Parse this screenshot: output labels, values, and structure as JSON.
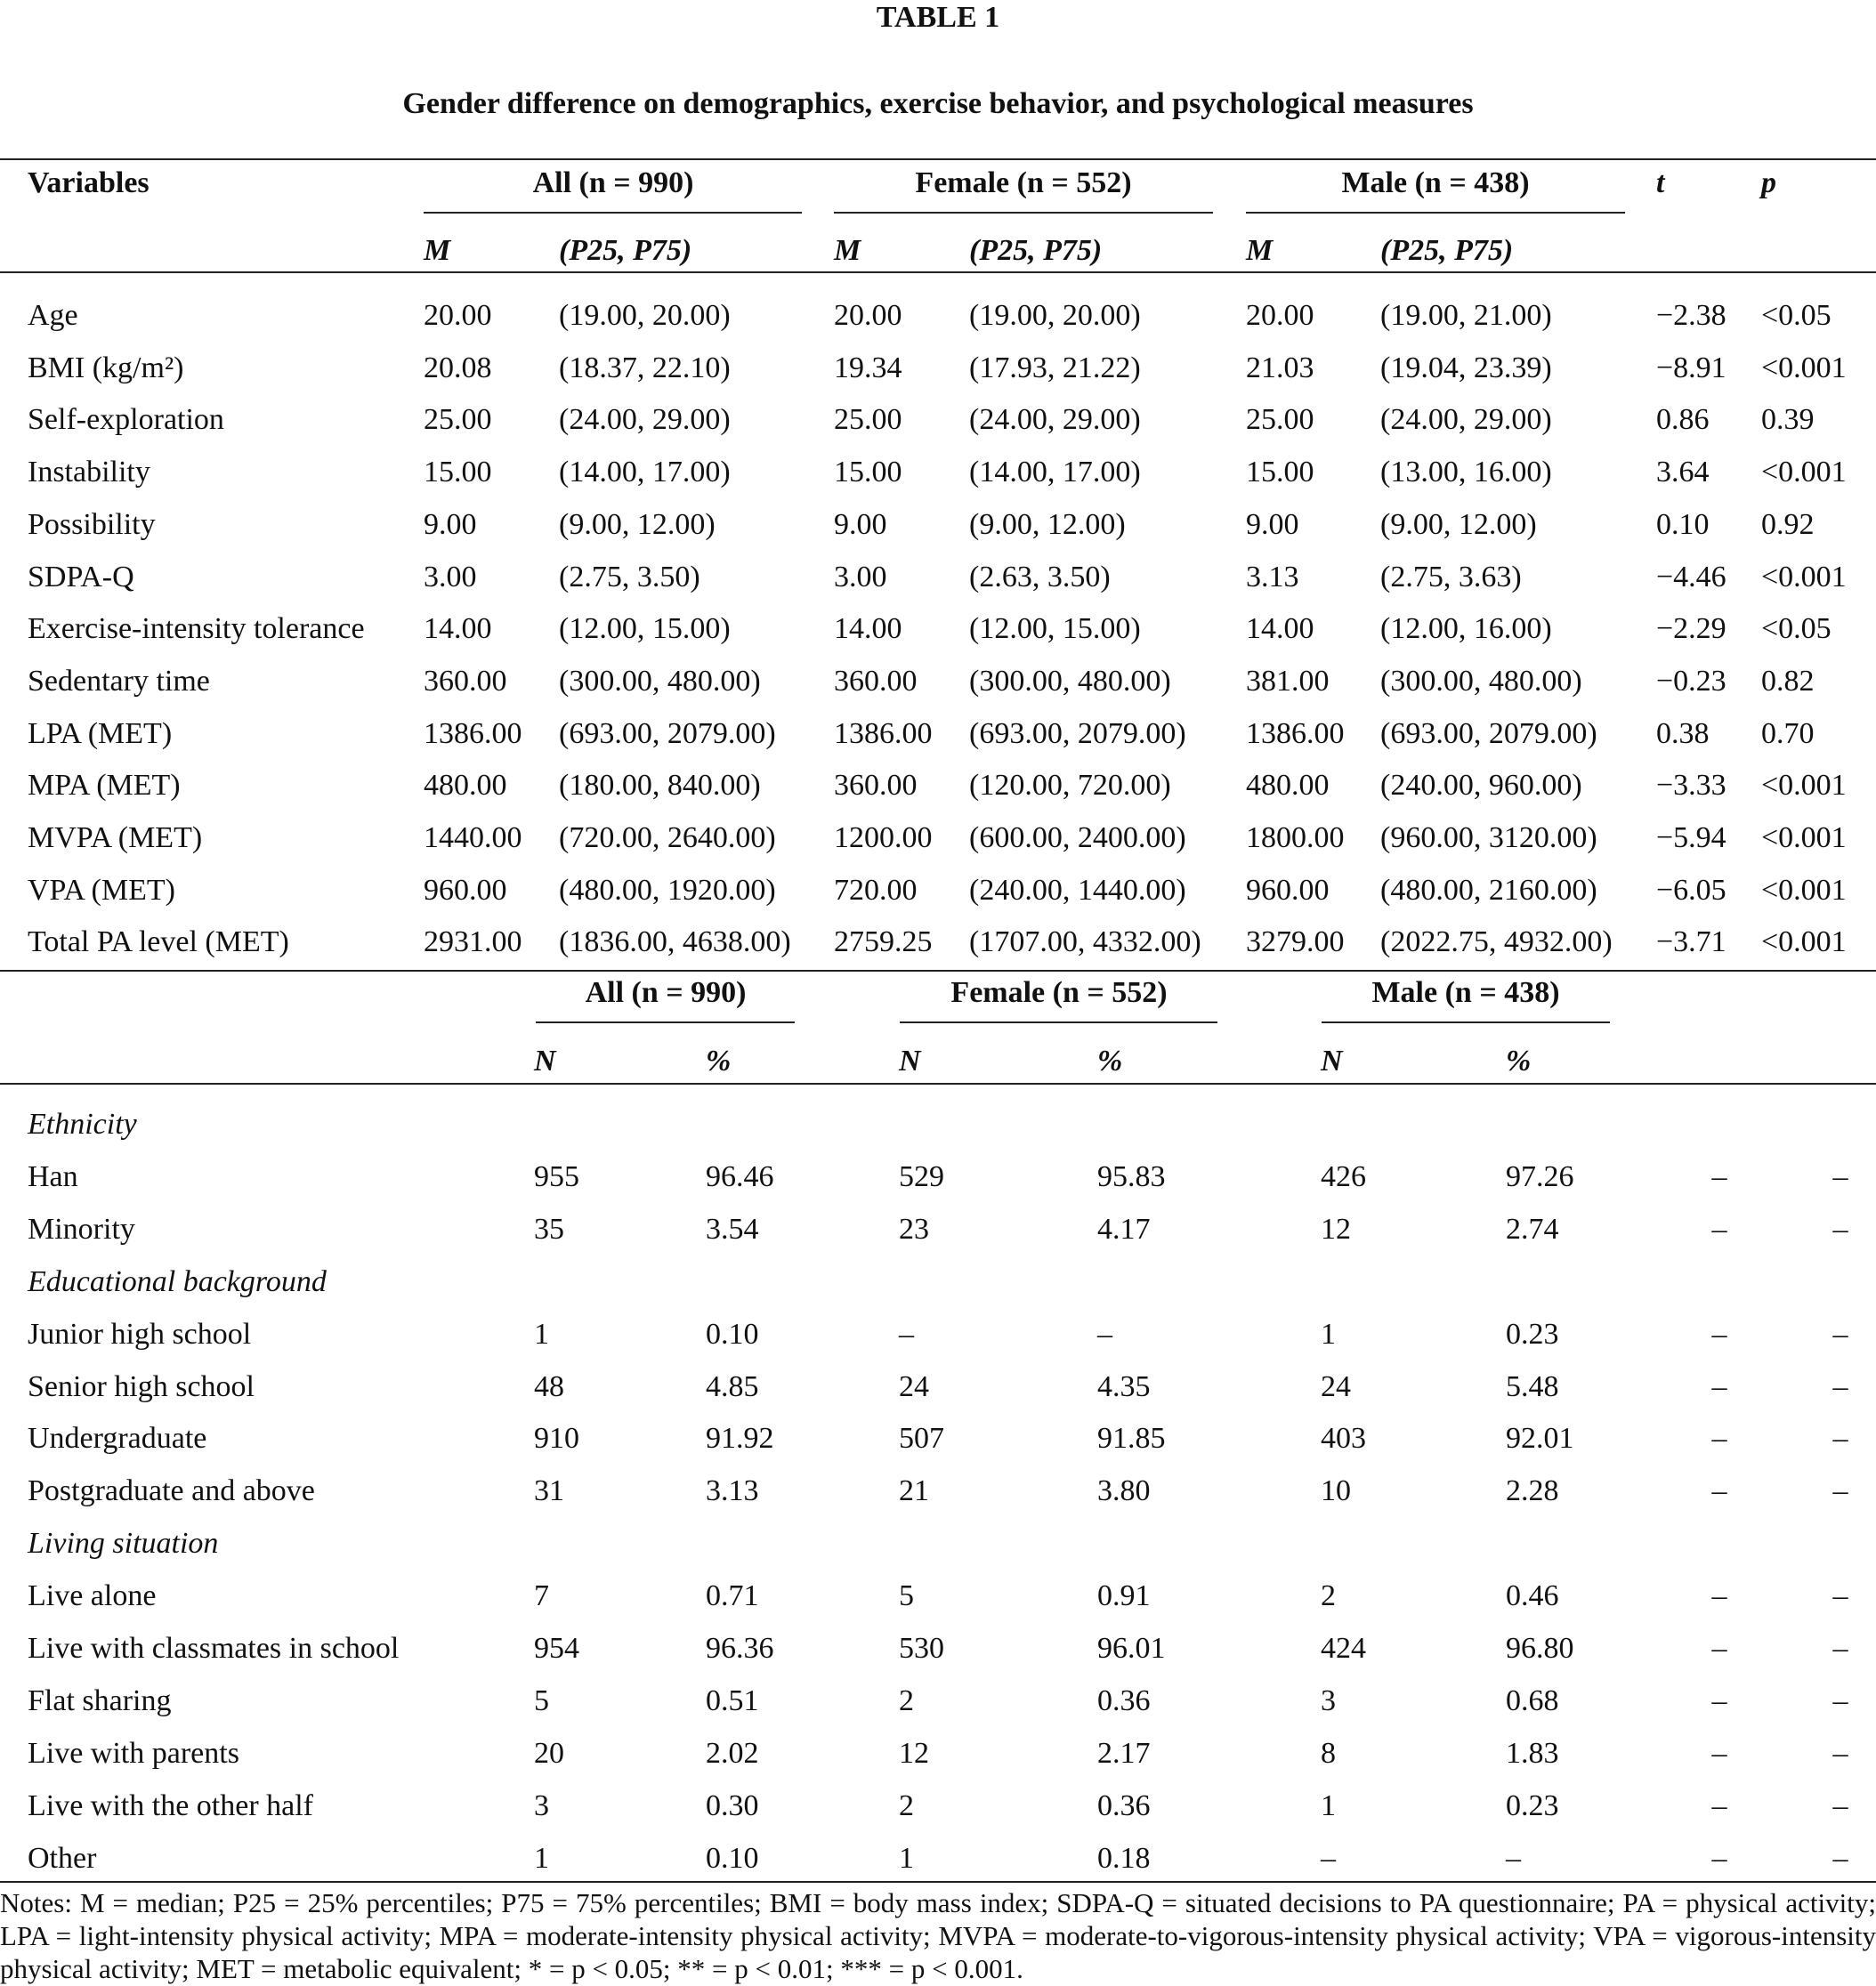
{
  "title": "TABLE 1",
  "subtitle": "Gender difference on demographics, exercise behavior, and psychological measures",
  "table1": {
    "header_groups": [
      "Variables",
      "All (n = 990)",
      "Female (n = 552)",
      "Male (n = 438)",
      "t",
      "p"
    ],
    "subheaders": [
      "M",
      "(P25, P75)",
      "M",
      "(P25, P75)",
      "M",
      "(P25, P75)"
    ],
    "rows": [
      [
        "Age",
        "20.00",
        "(19.00, 20.00)",
        "20.00",
        "(19.00, 20.00)",
        "20.00",
        "(19.00, 21.00)",
        "−2.38",
        "<0.05"
      ],
      [
        "BMI (kg/m²)",
        "20.08",
        "(18.37, 22.10)",
        "19.34",
        "(17.93, 21.22)",
        "21.03",
        "(19.04, 23.39)",
        "−8.91",
        "<0.001"
      ],
      [
        "Self-exploration",
        "25.00",
        "(24.00, 29.00)",
        "25.00",
        "(24.00, 29.00)",
        "25.00",
        "(24.00, 29.00)",
        "0.86",
        "0.39"
      ],
      [
        "Instability",
        "15.00",
        "(14.00, 17.00)",
        "15.00",
        "(14.00, 17.00)",
        "15.00",
        "(13.00, 16.00)",
        "3.64",
        "<0.001"
      ],
      [
        "Possibility",
        "9.00",
        "(9.00, 12.00)",
        "9.00",
        "(9.00, 12.00)",
        "9.00",
        "(9.00, 12.00)",
        "0.10",
        "0.92"
      ],
      [
        "SDPA-Q",
        "3.00",
        "(2.75, 3.50)",
        "3.00",
        "(2.63, 3.50)",
        "3.13",
        "(2.75, 3.63)",
        "−4.46",
        "<0.001"
      ],
      [
        "Exercise-intensity tolerance",
        "14.00",
        "(12.00, 15.00)",
        "14.00",
        "(12.00, 15.00)",
        "14.00",
        "(12.00, 16.00)",
        "−2.29",
        "<0.05"
      ],
      [
        "Sedentary time",
        "360.00",
        "(300.00, 480.00)",
        "360.00",
        "(300.00, 480.00)",
        "381.00",
        "(300.00, 480.00)",
        "−0.23",
        "0.82"
      ],
      [
        "LPA (MET)",
        "1386.00",
        "(693.00, 2079.00)",
        "1386.00",
        "(693.00, 2079.00)",
        "1386.00",
        "(693.00, 2079.00)",
        "0.38",
        "0.70"
      ],
      [
        "MPA (MET)",
        "480.00",
        "(180.00, 840.00)",
        "360.00",
        "(120.00, 720.00)",
        "480.00",
        "(240.00, 960.00)",
        "−3.33",
        "<0.001"
      ],
      [
        "MVPA (MET)",
        "1440.00",
        "(720.00, 2640.00)",
        "1200.00",
        "(600.00, 2400.00)",
        "1800.00",
        "(960.00, 3120.00)",
        "−5.94",
        "<0.001"
      ],
      [
        "VPA (MET)",
        "960.00",
        "(480.00, 1920.00)",
        "720.00",
        "(240.00, 1440.00)",
        "960.00",
        "(480.00, 2160.00)",
        "−6.05",
        "<0.001"
      ],
      [
        "Total PA level (MET)",
        "2931.00",
        "(1836.00, 4638.00)",
        "2759.25",
        "(1707.00, 4332.00)",
        "3279.00",
        "(2022.75, 4932.00)",
        "−3.71",
        "<0.001"
      ]
    ]
  },
  "table2": {
    "header_groups": [
      "All (n = 990)",
      "Female (n = 552)",
      "Male (n = 438)"
    ],
    "subheaders": [
      "N",
      "%",
      "N",
      "%",
      "N",
      "%"
    ],
    "rows": [
      [
        "Ethnicity"
      ],
      [
        "Han",
        "955",
        "96.46",
        "529",
        "95.83",
        "426",
        "97.26",
        "–",
        "–"
      ],
      [
        "Minority",
        "35",
        "3.54",
        "23",
        "4.17",
        "12",
        "2.74",
        "–",
        "–"
      ],
      [
        "Educational background"
      ],
      [
        "Junior high school",
        "1",
        "0.10",
        "–",
        "–",
        "1",
        "0.23",
        "–",
        "–"
      ],
      [
        "Senior high school",
        "48",
        "4.85",
        "24",
        "4.35",
        "24",
        "5.48",
        "–",
        "–"
      ],
      [
        "Undergraduate",
        "910",
        "91.92",
        "507",
        "91.85",
        "403",
        "92.01",
        "–",
        "–"
      ],
      [
        "Postgraduate and above",
        "31",
        "3.13",
        "21",
        "3.80",
        "10",
        "2.28",
        "–",
        "–"
      ],
      [
        "Living situation"
      ],
      [
        "Live alone",
        "7",
        "0.71",
        "5",
        "0.91",
        "2",
        "0.46",
        "–",
        "–"
      ],
      [
        "Live with classmates in school",
        "954",
        "96.36",
        "530",
        "96.01",
        "424",
        "96.80",
        "–",
        "–"
      ],
      [
        "Flat sharing",
        "5",
        "0.51",
        "2",
        "0.36",
        "3",
        "0.68",
        "–",
        "–"
      ],
      [
        "Live with parents",
        "20",
        "2.02",
        "12",
        "2.17",
        "8",
        "1.83",
        "–",
        "–"
      ],
      [
        "Live with the other half",
        "3",
        "0.30",
        "2",
        "0.36",
        "1",
        "0.23",
        "–",
        "–"
      ],
      [
        "Other",
        "1",
        "0.10",
        "1",
        "0.18",
        "–",
        "–",
        "–",
        "–"
      ]
    ]
  },
  "notes": "Notes: M = median; P25 = 25% percentiles; P75 = 75% percentiles; BMI = body mass index; SDPA-Q = situated decisions to PA questionnaire; PA = physical activity; LPA = light-intensity physical activity; MPA = moderate-intensity physical activity; MVPA = moderate-to-vigorous-intensity physical activity; VPA = vigorous-intensity physical activity; MET = metabolic equivalent; * = p < 0.05; ** = p < 0.01; *** = p < 0.001."
}
